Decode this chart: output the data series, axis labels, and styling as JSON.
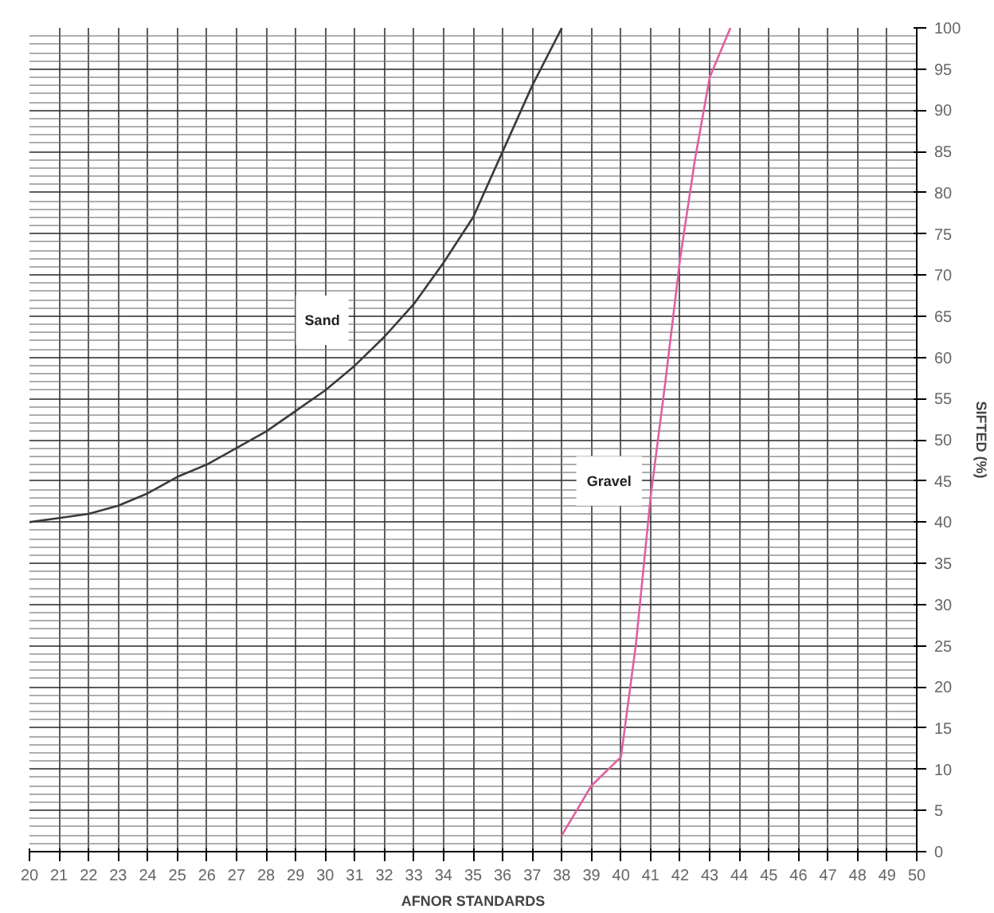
{
  "chart_data": {
    "type": "line",
    "xlabel": "AFNOR STANDARDS",
    "ylabel": "SIFTED (%)",
    "xlim": [
      20,
      50
    ],
    "ylim": [
      0,
      100
    ],
    "xticks": [
      20,
      21,
      22,
      23,
      24,
      25,
      26,
      27,
      28,
      29,
      30,
      31,
      32,
      33,
      34,
      35,
      36,
      37,
      38,
      39,
      40,
      41,
      42,
      43,
      44,
      45,
      46,
      47,
      48,
      49,
      50
    ],
    "yticks": [
      0,
      5,
      10,
      15,
      20,
      25,
      30,
      35,
      40,
      45,
      50,
      55,
      60,
      65,
      70,
      75,
      80,
      85,
      90,
      95,
      100
    ],
    "grid": true,
    "marker": "none",
    "line_style": "solid",
    "series": [
      {
        "color": "#3a3a3a",
        "x": [
          20,
          21,
          22,
          23,
          24,
          25,
          26,
          27,
          28,
          29,
          30,
          31,
          32,
          33,
          34,
          35,
          36,
          37,
          38
        ],
        "values": [
          40,
          40.5,
          41,
          42,
          43.5,
          45.5,
          47,
          49,
          51,
          53.5,
          56,
          59,
          62.5,
          66.5,
          71.5,
          77,
          85,
          93,
          100
        ]
      },
      {
        "color": "#e060a0",
        "x": [
          38,
          39,
          40,
          40.5,
          41,
          41.5,
          42,
          42.5,
          43,
          43.7
        ],
        "values": [
          2,
          8,
          11.5,
          25,
          43,
          57,
          72,
          84,
          94,
          100
        ]
      }
    ],
    "annotations": [
      {
        "text": "Sand",
        "x": 29.9,
        "y": 64.5
      },
      {
        "text": "Gravel",
        "x": 39.6,
        "y": 45
      }
    ]
  }
}
